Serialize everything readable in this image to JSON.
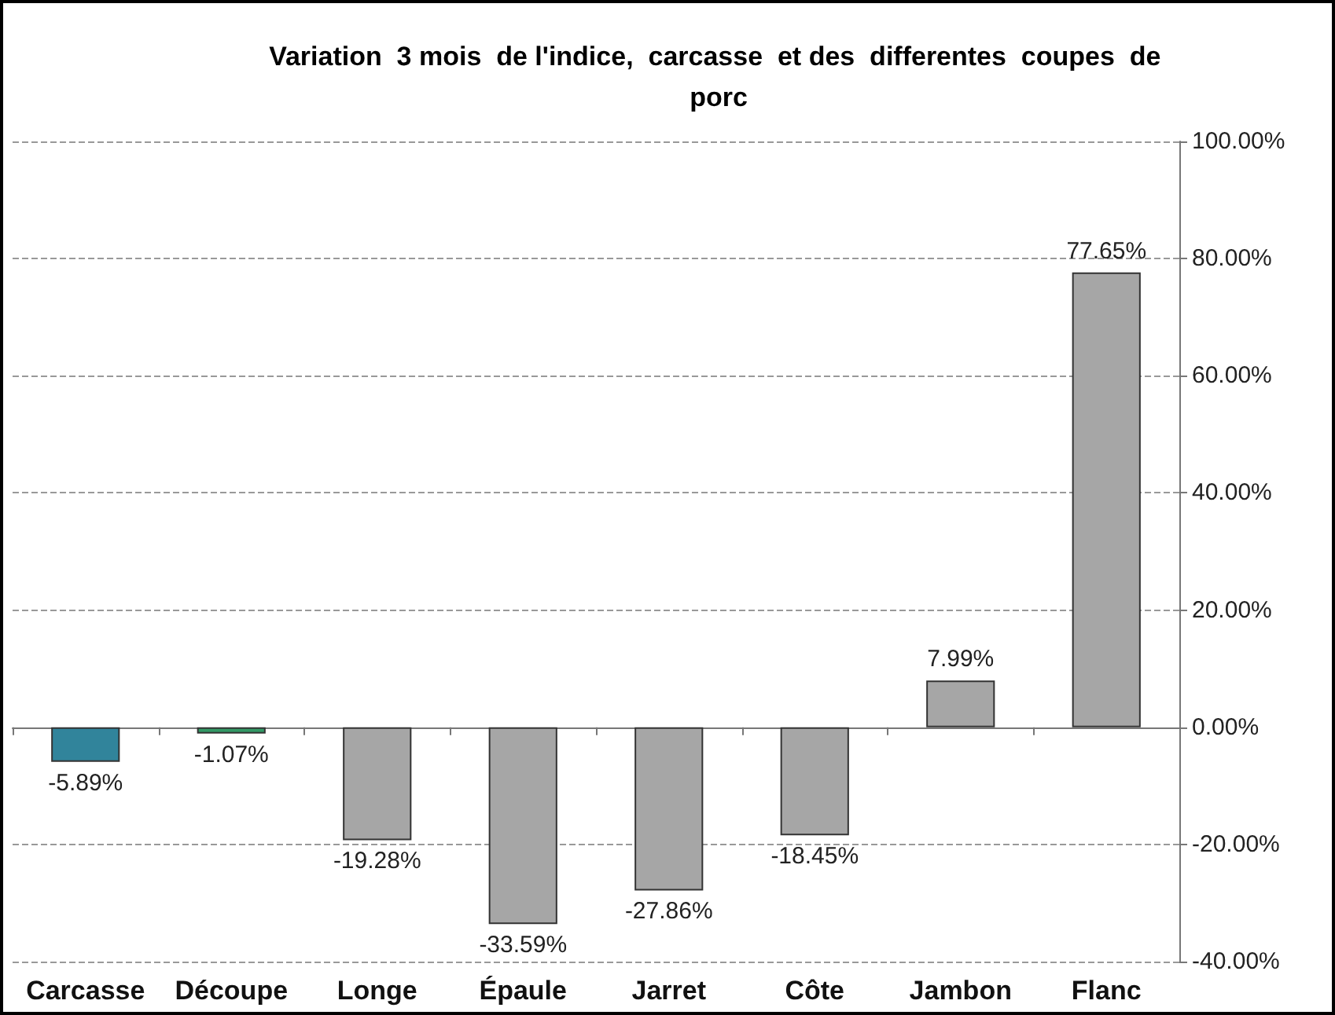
{
  "chart_data": {
    "type": "bar",
    "title": "Variation  3 mois  de l'indice,  carcasse  et des  differentes  coupes  de porc",
    "categories": [
      "Carcasse",
      "Découpe",
      "Longe",
      "Épaule",
      "Jarret",
      "Côte",
      "Jambon",
      "Flanc"
    ],
    "values": [
      -5.89,
      -1.07,
      -19.28,
      -33.59,
      -27.86,
      -18.45,
      7.99,
      77.65
    ],
    "value_labels": [
      "-5.89%",
      "-1.07%",
      "-19.28%",
      "-33.59%",
      "-27.86%",
      "-18.45%",
      "7.99%",
      "77.65%"
    ],
    "colors": [
      "#31849b",
      "#339966",
      "#a6a6a6",
      "#a6a6a6",
      "#a6a6a6",
      "#a6a6a6",
      "#a6a6a6",
      "#a6a6a6"
    ],
    "ylim": [
      -40,
      100
    ],
    "yticks": [
      {
        "value": -40,
        "label": "-40.00%"
      },
      {
        "value": -20,
        "label": "-20.00%"
      },
      {
        "value": 0,
        "label": "0.00%"
      },
      {
        "value": 20,
        "label": "20.00%"
      },
      {
        "value": 40,
        "label": "40.00%"
      },
      {
        "value": 60,
        "label": "60.00%"
      },
      {
        "value": 80,
        "label": "80.00%"
      },
      {
        "value": 100,
        "label": "100.00%"
      }
    ],
    "grid": "y"
  }
}
